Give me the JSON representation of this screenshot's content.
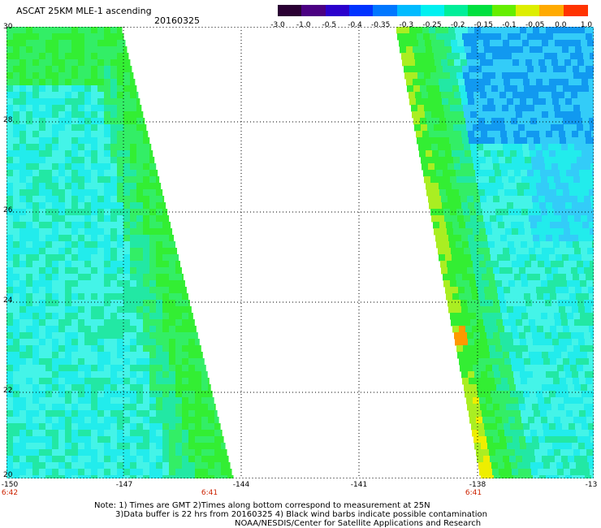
{
  "header": {
    "title": "ASCAT 25KM MLE-1 ascending",
    "date": "20160325"
  },
  "colorbar": {
    "labels": [
      "-3.0",
      "-1.0",
      "-0.5",
      "-0.4",
      "-0.35",
      "-0.3",
      "-0.25",
      "-0.2",
      "-0.15",
      "-0.1",
      "-0.05",
      "0.0",
      "1.0"
    ],
    "colors": [
      "#2a0033",
      "#4b0082",
      "#2b00cc",
      "#0033ff",
      "#0077ff",
      "#00bbff",
      "#00f0f0",
      "#00ee99",
      "#00e040",
      "#66ee00",
      "#ddee00",
      "#ffaa00",
      "#ff3300"
    ]
  },
  "map": {
    "lat_labels": [
      "30",
      "28",
      "26",
      "24",
      "22",
      "20"
    ],
    "lon_labels": [
      "-150",
      "-147",
      "-144",
      "-141",
      "-138",
      "-13"
    ],
    "time_labels": [
      "6:42",
      "6:41",
      "6:41"
    ],
    "colors": {
      "cyan": "#22ecec",
      "cyan_light": "#44f4e8",
      "teal_green": "#22e8a4",
      "green_light": "#33ee66",
      "green": "#33ee33",
      "yellow_green": "#aaee22",
      "yellow": "#eeee00",
      "orange": "#ff9900",
      "blue_light": "#33ccf8",
      "blue": "#1199f0"
    }
  },
  "notes": {
    "line1": "Note: 1) Times are GMT 2)Times along bottom correspond to measurement at 25N",
    "line2": "3)Data buffer is 22 hrs from 20160325 4) Black wind barbs indicate possible contamination",
    "line3": "NOAA/NESDIS/Center for Satellite Applications and Research"
  }
}
